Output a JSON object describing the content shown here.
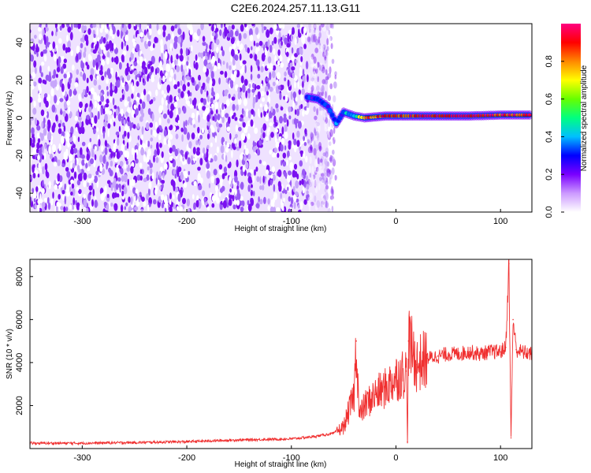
{
  "title": "C2E6.2024.257.11.13.G11",
  "chart_data": [
    {
      "type": "heatmap",
      "xlabel": "Height of straight line (km)",
      "ylabel": "Frequency (Hz)",
      "xlim": [
        -350,
        130
      ],
      "ylim": [
        -50,
        50
      ],
      "xticks": [
        -300,
        -200,
        -100,
        0,
        100
      ],
      "yticks": [
        -40,
        -20,
        0,
        20,
        40
      ],
      "colorbar": {
        "label": "Normalized spectral amplitude",
        "range": [
          0.0,
          1.0
        ],
        "ticks": [
          0.0,
          0.2,
          0.4,
          0.6,
          0.8
        ],
        "tick_labels": [
          "0.0",
          "0.2",
          "0.4",
          "0.6",
          "0.8"
        ],
        "colors": [
          "#ffffff",
          "#cc99ff",
          "#7a00ff",
          "#0000ff",
          "#00bfff",
          "#00ff80",
          "#66ff00",
          "#ffff00",
          "#ff8800",
          "#ff0000",
          "#ff0080"
        ]
      },
      "signal_trace": [
        {
          "x": -85,
          "y": 11,
          "amp": 0.3
        },
        {
          "x": -75,
          "y": 10,
          "amp": 0.3
        },
        {
          "x": -65,
          "y": 6,
          "amp": 0.25
        },
        {
          "x": -57,
          "y": -3,
          "amp": 0.3
        },
        {
          "x": -50,
          "y": 3,
          "amp": 0.35
        },
        {
          "x": -40,
          "y": 1,
          "amp": 0.45
        },
        {
          "x": -30,
          "y": 0,
          "amp": 0.8
        },
        {
          "x": -10,
          "y": 1,
          "amp": 0.9
        },
        {
          "x": 10,
          "y": 1,
          "amp": 0.9
        },
        {
          "x": 40,
          "y": 1,
          "amp": 0.95
        },
        {
          "x": 70,
          "y": 1,
          "amp": 0.95
        },
        {
          "x": 100,
          "y": 1.5,
          "amp": 0.9
        },
        {
          "x": 130,
          "y": 1.5,
          "amp": 0.9
        }
      ],
      "noise_region_x": [
        -350,
        -65
      ]
    },
    {
      "type": "line",
      "xlabel": "Height of straight line (km)",
      "ylabel": "SNR (10 * v/v)",
      "xlim": [
        -350,
        130
      ],
      "ylim": [
        0,
        8800
      ],
      "xticks": [
        -300,
        -200,
        -100,
        0,
        100
      ],
      "yticks": [
        2000,
        4000,
        6000,
        8000
      ],
      "series": [
        {
          "color": "#f03030",
          "x": [
            -350,
            -300,
            -250,
            -200,
            -150,
            -100,
            -80,
            -60,
            -50,
            -40,
            -38,
            -35,
            -30,
            -20,
            -10,
            0,
            10,
            11,
            12,
            20,
            30,
            40,
            50,
            60,
            70,
            80,
            90,
            100,
            105,
            108,
            110,
            112,
            115,
            120,
            130
          ],
          "y": [
            250,
            250,
            280,
            320,
            400,
            450,
            550,
            700,
            1000,
            2500,
            5000,
            1500,
            2000,
            2500,
            2800,
            3300,
            3600,
            300,
            5000,
            3900,
            4200,
            4300,
            4400,
            4400,
            4500,
            4400,
            4500,
            4500,
            4700,
            8600,
            500,
            6000,
            4600,
            4500,
            4400
          ]
        }
      ]
    }
  ]
}
